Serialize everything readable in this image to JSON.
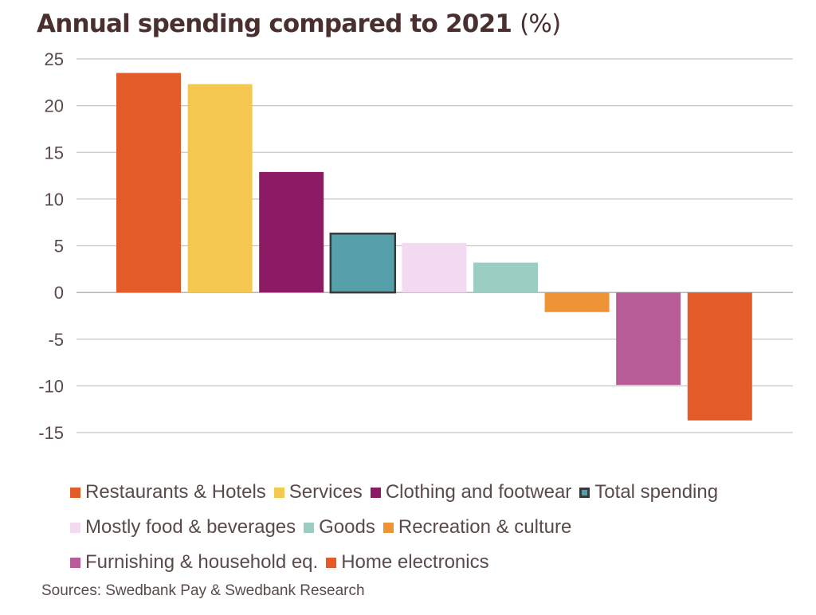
{
  "chart_data": {
    "type": "bar",
    "title": "Annual spending compared to 2021",
    "title_unit": "(%)",
    "xlabel": "",
    "ylabel": "",
    "ylim": [
      -15,
      25
    ],
    "yticks": [
      25,
      20,
      15,
      10,
      5,
      0,
      -5,
      -10,
      -15
    ],
    "grid": true,
    "legend_position": "bottom",
    "categories": [
      "Restaurants & Hotels",
      "Services",
      "Clothing and footwear",
      "Total spending",
      "Mostly food & beverages",
      "Goods",
      "Recreation & culture",
      "Furnishing & household eq.",
      "Home electronics"
    ],
    "values": [
      23.5,
      22.3,
      12.9,
      6.3,
      5.3,
      3.2,
      -2.1,
      -9.9,
      -13.7
    ],
    "colors": [
      "#e35b29",
      "#f4c750",
      "#8c1a64",
      "#56a0ac",
      "#f2dbf1",
      "#9ccdc3",
      "#ef9337",
      "#b75c96",
      "#e35b29"
    ],
    "highlight": "Total spending",
    "highlight_border": "#3a3a3a",
    "source": "Sources: Swedbank Pay & Swedbank Research"
  },
  "legend_rows": [
    [
      0,
      1,
      2,
      3
    ],
    [
      4,
      5,
      6
    ],
    [
      7,
      8
    ]
  ]
}
